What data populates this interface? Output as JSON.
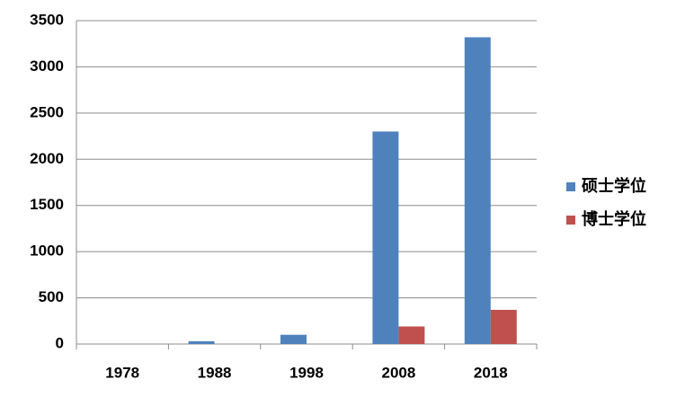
{
  "chart_data": {
    "type": "bar",
    "categories": [
      "1978",
      "1988",
      "1998",
      "2008",
      "2018"
    ],
    "series": [
      {
        "name": "硕士学位",
        "color": "#4f81bd",
        "values": [
          0,
          30,
          100,
          2300,
          3320
        ]
      },
      {
        "name": "博士学位",
        "color": "#c0504d",
        "values": [
          0,
          0,
          0,
          190,
          370
        ]
      }
    ],
    "ylim": [
      0,
      3500
    ],
    "yticks": [
      0,
      500,
      1000,
      1500,
      2000,
      2500,
      3000,
      3500
    ],
    "grid": true,
    "legend": "right"
  }
}
